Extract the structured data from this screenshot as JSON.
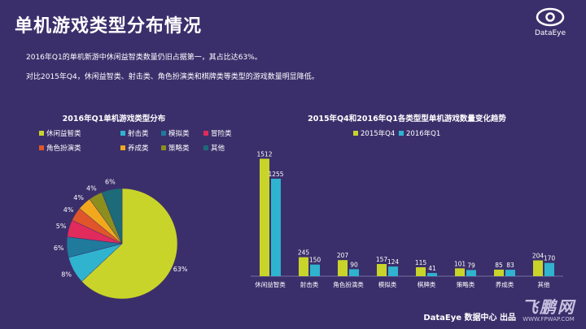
{
  "header": {
    "title": "单机游戏类型分布情况",
    "logo_text": "DataEye"
  },
  "description": {
    "line1": "2016年Q1的单机新游中休闲益智类数量仍旧占据第一，其占比达63%。",
    "line2": "对比2015年Q4，休闲益智类、射击类、角色扮演类和棋牌类等类型的游戏数量明显降低。"
  },
  "footer": {
    "source": "DataEye 数据中心 出品",
    "watermark_main": "飞鹏网",
    "watermark_url": "WWW.FPWAP.COM"
  },
  "chart_data": [
    {
      "type": "pie",
      "title": "2016年Q1单机游戏类型分布",
      "legend_position": "top",
      "categories": [
        "休闲益智类",
        "射击类",
        "模拟类",
        "冒险类",
        "角色扮演类",
        "养成类",
        "策略类",
        "其他"
      ],
      "values": [
        63,
        8,
        6,
        5,
        4,
        4,
        4,
        6
      ],
      "labels": [
        "63%",
        "8%",
        "6%",
        "5%",
        "4%",
        "4%",
        "4%",
        "6%"
      ],
      "colors": [
        "#c9d42a",
        "#2fb3cf",
        "#1f7a9c",
        "#e02b5c",
        "#e0562a",
        "#f2a81d",
        "#8c8f1e",
        "#1d6b78"
      ]
    },
    {
      "type": "bar",
      "title": "2015年Q4和2016年Q1各类型型单机游戏数量变化趋势",
      "legend_position": "top",
      "categories": [
        "休闲益智类",
        "射击类",
        "角色扮演类",
        "模拟类",
        "棋牌类",
        "策略类",
        "养成类",
        "其他"
      ],
      "series": [
        {
          "name": "2015年Q4",
          "color": "#c9d42a",
          "values": [
            1512,
            245,
            207,
            157,
            115,
            101,
            85,
            204
          ]
        },
        {
          "name": "2016年Q1",
          "color": "#2fb3cf",
          "values": [
            1255,
            150,
            90,
            124,
            41,
            79,
            83,
            170
          ]
        }
      ],
      "ylim": [
        0,
        1600
      ],
      "grid": false
    }
  ]
}
